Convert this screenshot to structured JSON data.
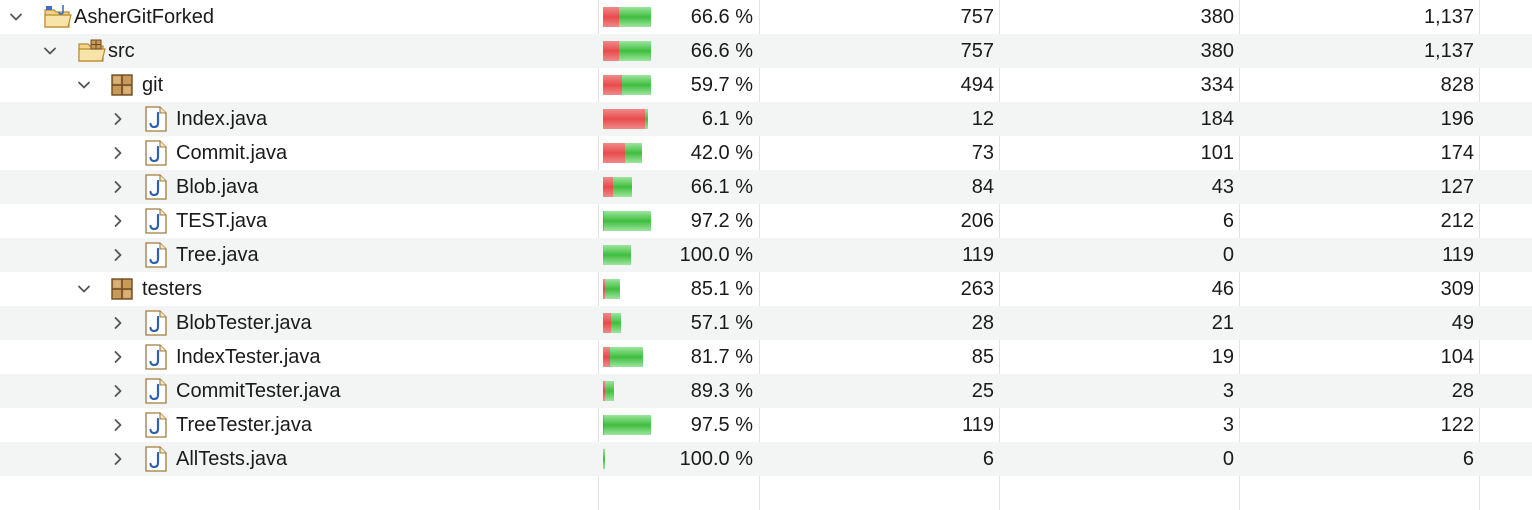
{
  "colors": {
    "missed": "#e84b4b",
    "covered": "#3fbf3f",
    "row_alt": "#f3f4f4"
  },
  "rows": [
    {
      "name": "AsherGitForked",
      "icon": "project-folder-icon",
      "depth": 0,
      "expanded": true,
      "coverage": "66.6 %",
      "cov_fraction": 0.666,
      "bar_scale": 1.0,
      "covered": "757",
      "missed": "380",
      "total": "1,137"
    },
    {
      "name": "src",
      "icon": "source-folder-icon",
      "depth": 1,
      "expanded": true,
      "coverage": "66.6 %",
      "cov_fraction": 0.666,
      "bar_scale": 1.0,
      "covered": "757",
      "missed": "380",
      "total": "1,137"
    },
    {
      "name": "git",
      "icon": "package-icon",
      "depth": 2,
      "expanded": true,
      "coverage": "59.7 %",
      "cov_fraction": 0.597,
      "bar_scale": 1.0,
      "covered": "494",
      "missed": "334",
      "total": "828"
    },
    {
      "name": "Index.java",
      "icon": "java-file-icon",
      "depth": 3,
      "expanded": false,
      "coverage": "6.1 %",
      "cov_fraction": 0.061,
      "bar_scale": 0.94,
      "covered": "12",
      "missed": "184",
      "total": "196"
    },
    {
      "name": "Commit.java",
      "icon": "java-file-icon",
      "depth": 3,
      "expanded": false,
      "coverage": "42.0 %",
      "cov_fraction": 0.42,
      "bar_scale": 0.82,
      "covered": "73",
      "missed": "101",
      "total": "174"
    },
    {
      "name": "Blob.java",
      "icon": "java-file-icon",
      "depth": 3,
      "expanded": false,
      "coverage": "66.1 %",
      "cov_fraction": 0.661,
      "bar_scale": 0.6,
      "covered": "84",
      "missed": "43",
      "total": "127"
    },
    {
      "name": "TEST.java",
      "icon": "java-file-icon",
      "depth": 3,
      "expanded": false,
      "coverage": "97.2 %",
      "cov_fraction": 0.972,
      "bar_scale": 1.0,
      "covered": "206",
      "missed": "6",
      "total": "212"
    },
    {
      "name": "Tree.java",
      "icon": "java-file-icon",
      "depth": 3,
      "expanded": false,
      "coverage": "100.0 %",
      "cov_fraction": 1.0,
      "bar_scale": 0.58,
      "covered": "119",
      "missed": "0",
      "total": "119"
    },
    {
      "name": "testers",
      "icon": "package-icon",
      "depth": 2,
      "expanded": true,
      "coverage": "85.1 %",
      "cov_fraction": 0.851,
      "bar_scale": 0.36,
      "covered": "263",
      "missed": "46",
      "total": "309"
    },
    {
      "name": "BlobTester.java",
      "icon": "java-file-icon",
      "depth": 3,
      "expanded": false,
      "coverage": "57.1 %",
      "cov_fraction": 0.571,
      "bar_scale": 0.38,
      "covered": "28",
      "missed": "21",
      "total": "49"
    },
    {
      "name": "IndexTester.java",
      "icon": "java-file-icon",
      "depth": 3,
      "expanded": false,
      "coverage": "81.7 %",
      "cov_fraction": 0.817,
      "bar_scale": 0.84,
      "covered": "85",
      "missed": "19",
      "total": "104"
    },
    {
      "name": "CommitTester.java",
      "icon": "java-file-icon",
      "depth": 3,
      "expanded": false,
      "coverage": "89.3 %",
      "cov_fraction": 0.893,
      "bar_scale": 0.22,
      "covered": "25",
      "missed": "3",
      "total": "28"
    },
    {
      "name": "TreeTester.java",
      "icon": "java-file-icon",
      "depth": 3,
      "expanded": false,
      "coverage": "97.5 %",
      "cov_fraction": 0.975,
      "bar_scale": 1.0,
      "covered": "119",
      "missed": "3",
      "total": "122"
    },
    {
      "name": "AllTests.java",
      "icon": "java-file-icon",
      "depth": 3,
      "expanded": false,
      "coverage": "100.0 %",
      "cov_fraction": 1.0,
      "bar_scale": 0.04,
      "covered": "6",
      "missed": "0",
      "total": "6"
    }
  ]
}
